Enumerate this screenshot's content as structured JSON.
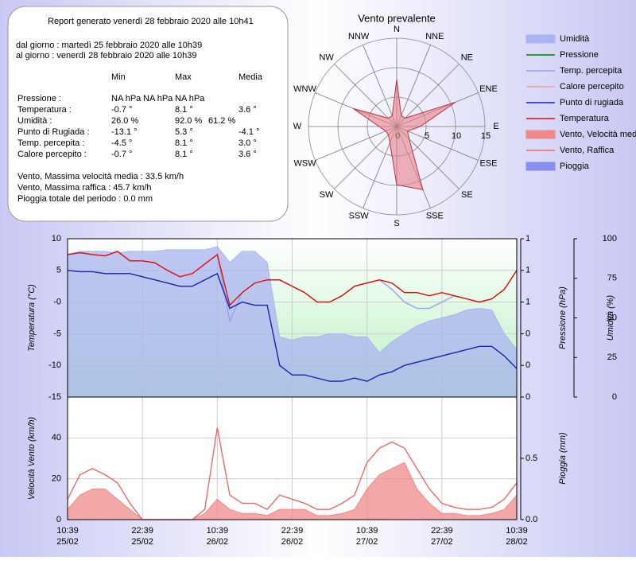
{
  "report": {
    "title": "Report generato venerdì 28 febbraio 2020 alle 10h41",
    "from": "dal giorno : martedì 25 febbraio 2020 alle 10h39",
    "to": "al giorno : venerdì 28 febbraio 2020 alle 10h39",
    "columns": [
      "Min",
      "Max",
      "Media"
    ],
    "rows": [
      [
        "Pressione :",
        "NA hPa",
        "NA hPa",
        "NA hPa"
      ],
      [
        "Temperatura :",
        "-0.7 °",
        "8.1 °",
        "3.6 °"
      ],
      [
        "Umidità :",
        "26.0 %",
        "92.0 %",
        "61.2 %"
      ],
      [
        "Punto di Rugiada :",
        "-13.1 °",
        "5.3 °",
        "-4.1 °"
      ],
      [
        "Temp. percepita :",
        "-4.5 °",
        "8.1 °",
        "3.0 °"
      ],
      [
        "Calore percepito :",
        "-0.7 °",
        "8.1 °",
        "3.6 °"
      ]
    ],
    "notes": [
      "Vento, Massima velocità media : 33.5 km/h",
      "Vento, Massima raffica : 45.7 km/h",
      "Pioggia totale del periodo : 0.0 mm"
    ]
  },
  "chart_data": [
    {
      "type": "radar",
      "title": "Vento prevalente",
      "categories": [
        "N",
        "NNE",
        "NE",
        "ENE",
        "E",
        "ESE",
        "SE",
        "SSE",
        "S",
        "SSW",
        "SW",
        "WSW",
        "W",
        "WNW",
        "NW",
        "NNW"
      ],
      "values": [
        8,
        2,
        2,
        10.8,
        4,
        2,
        3,
        11.6,
        9.9,
        3,
        2,
        2,
        3,
        8,
        2,
        2
      ],
      "color": "#e88088",
      "rlim": [
        0,
        15
      ],
      "rticks": [
        0,
        5,
        10,
        15
      ]
    },
    {
      "type": "line",
      "x": [
        "10:39 25/02",
        "12:39 25/02",
        "14:39 25/02",
        "16:39 25/02",
        "18:39 25/02",
        "20:39 25/02",
        "22:39 25/02",
        "00:39 26/02",
        "02:39 26/02",
        "04:39 26/02",
        "06:39 26/02",
        "08:39 26/02",
        "10:39 26/02",
        "12:39 26/02",
        "14:39 26/02",
        "16:39 26/02",
        "18:39 26/02",
        "20:39 26/02",
        "22:39 26/02",
        "00:39 27/02",
        "02:39 27/02",
        "04:39 27/02",
        "06:39 27/02",
        "08:39 27/02",
        "10:39 27/02",
        "12:39 27/02",
        "14:39 27/02",
        "16:39 27/02",
        "18:39 27/02",
        "20:39 27/02",
        "22:39 27/02",
        "00:39 28/02",
        "02:39 28/02",
        "04:39 28/02",
        "06:39 28/02",
        "08:39 28/02",
        "10:39 28/02"
      ],
      "xlim": [
        "10:39 25/02",
        "10:39 28/02"
      ],
      "xticks": [
        "10:39 25/02",
        "22:39 25/02",
        "10:39 26/02",
        "22:39 26/02",
        "10:39 27/02",
        "22:39 27/02",
        "10:39 28/02"
      ],
      "y_label": "Temperatura (°C)",
      "y2_label": "Pressione (hPa)",
      "y3_label": "Umidità (%)",
      "ylim": [
        -15,
        10
      ],
      "yticks": [
        10,
        5,
        {
          "value": 0,
          "label": "-0"
        },
        -5,
        -10,
        -15
      ],
      "y2lim": [
        0,
        1.25
      ],
      "y2ticks": [
        {
          "value": 1.25,
          "label": "1"
        },
        1,
        {
          "value": 0.75,
          "label": "1"
        },
        {
          "value": 0.5,
          "label": "0"
        },
        {
          "value": 0.25,
          "label": "0"
        },
        0
      ],
      "y3lim": [
        0,
        100
      ],
      "y3ticks": [
        100,
        75,
        50,
        25,
        0
      ],
      "grid": true,
      "series": [
        {
          "name": "Umidità",
          "color": "#aab4f0",
          "style": "area",
          "axis": "y3",
          "values": [
            90,
            92,
            92,
            92,
            91,
            92,
            92,
            92,
            93,
            93,
            93,
            93,
            95,
            85,
            92,
            92,
            85,
            38,
            36,
            38,
            38,
            40,
            40,
            38,
            38,
            28,
            35,
            40,
            45,
            48,
            50,
            52,
            55,
            56,
            55,
            40,
            30
          ]
        },
        {
          "name": "Pressione",
          "color": "#008000",
          "style": "line",
          "axis": "y2",
          "values": [
            null,
            null,
            null,
            null,
            null,
            null,
            null,
            null,
            null,
            null,
            null,
            null,
            null,
            null,
            null,
            null,
            null,
            null,
            null,
            null,
            null,
            null,
            null,
            null,
            null,
            null,
            null,
            null,
            null,
            null,
            null,
            null,
            null,
            null,
            null,
            null,
            null
          ]
        },
        {
          "name": "Temp. percepita",
          "color": "#9aa0ee",
          "style": "line",
          "values": [
            7.5,
            7.8,
            7.5,
            7.3,
            8,
            6.5,
            6.5,
            6.2,
            5,
            4,
            4.5,
            6,
            7.5,
            -3,
            1.5,
            3,
            3.5,
            3.5,
            2.5,
            1.5,
            0,
            0,
            1,
            2.5,
            3,
            3.5,
            2,
            0,
            -1,
            -1,
            0,
            1,
            0.5,
            0,
            0.5,
            2,
            5
          ]
        },
        {
          "name": "Calore percepito",
          "color": "#f0a0a0",
          "style": "line",
          "values": [
            7.5,
            7.8,
            7.5,
            7.3,
            8,
            6.5,
            6.5,
            6.2,
            5,
            4,
            4.5,
            6,
            7.5,
            -0.5,
            1.5,
            3,
            3.5,
            3.5,
            2.5,
            1.5,
            0,
            0,
            1,
            2.5,
            3,
            3.5,
            3,
            1.5,
            1.5,
            1,
            1.5,
            1,
            0.5,
            0,
            0.5,
            2,
            5
          ]
        },
        {
          "name": "Punto di rugiada",
          "color": "#1a22b0",
          "style": "line",
          "values": [
            5,
            4.8,
            4.8,
            4.5,
            4.5,
            4.5,
            4,
            3.5,
            3,
            2.5,
            2.5,
            3.5,
            4.5,
            -1,
            0,
            -0.5,
            -0.5,
            -10,
            -11.5,
            -11.5,
            -12,
            -12.5,
            -12.5,
            -12,
            -12.5,
            -11.5,
            -11,
            -10,
            -9.5,
            -9,
            -8.5,
            -8,
            -7.5,
            -7,
            -7,
            -8.5,
            -10.5
          ]
        },
        {
          "name": "Temperatura",
          "color": "#d81010",
          "style": "line",
          "values": [
            7.5,
            7.8,
            7.5,
            7.3,
            8,
            6.5,
            6.5,
            6.2,
            5,
            4,
            4.5,
            6,
            7.5,
            -0.5,
            1.5,
            3,
            3.5,
            3.5,
            2.5,
            1.5,
            0,
            0,
            1,
            2.5,
            3,
            3.5,
            3,
            1.5,
            1.5,
            1,
            1.5,
            1,
            0.5,
            0,
            0.5,
            2,
            5
          ]
        }
      ]
    },
    {
      "type": "line",
      "x": [
        "10:39 25/02",
        "12:39 25/02",
        "14:39 25/02",
        "16:39 25/02",
        "18:39 25/02",
        "20:39 25/02",
        "22:39 25/02",
        "00:39 26/02",
        "02:39 26/02",
        "04:39 26/02",
        "06:39 26/02",
        "08:39 26/02",
        "10:39 26/02",
        "12:39 26/02",
        "14:39 26/02",
        "16:39 26/02",
        "18:39 26/02",
        "20:39 26/02",
        "22:39 26/02",
        "00:39 27/02",
        "02:39 27/02",
        "04:39 27/02",
        "06:39 27/02",
        "08:39 27/02",
        "10:39 27/02",
        "12:39 27/02",
        "14:39 27/02",
        "16:39 27/02",
        "18:39 27/02",
        "20:39 27/02",
        "22:39 27/02",
        "00:39 28/02",
        "02:39 28/02",
        "04:39 28/02",
        "06:39 28/02",
        "08:39 28/02",
        "10:39 28/02"
      ],
      "xlim": [
        "10:39 25/02",
        "10:39 28/02"
      ],
      "xticks": [
        {
          "value": "10:39 25/02",
          "label": "10:39 25/02"
        },
        {
          "value": "22:39 25/02",
          "label": "22:39 25/02"
        },
        {
          "value": "10:39 26/02",
          "label": "10:39 26/02"
        },
        {
          "value": "22:39 26/02",
          "label": "22:39 26/02"
        },
        {
          "value": "10:39 27/02",
          "label": "10:39 27/02"
        },
        {
          "value": "22:39 27/02",
          "label": "22:39 27/02"
        },
        {
          "value": "10:39 28/02",
          "label": "10:39 28/02"
        }
      ],
      "y_label": "Velocità Vento (km/h)",
      "y2_label": "Pioggia (mm)",
      "ylim": [
        0,
        60
      ],
      "yticks": [
        0,
        20,
        40
      ],
      "y2lim": [
        0,
        1
      ],
      "y2ticks": [
        {
          "value": 0,
          "label": "0.0"
        },
        0.5
      ],
      "grid": true,
      "series": [
        {
          "name": "Vento, Velocità media",
          "color": "#f08a8a",
          "style": "area",
          "values": [
            5,
            12,
            15,
            15,
            10,
            5,
            0,
            0,
            0,
            0,
            0,
            3,
            10,
            5,
            3,
            3,
            2,
            5,
            5,
            5,
            2,
            2,
            3,
            5,
            15,
            22,
            25,
            28,
            15,
            8,
            3,
            3,
            2,
            2,
            3,
            5,
            12
          ]
        },
        {
          "name": "Vento, Raffica",
          "color": "#e86a6a",
          "style": "line",
          "values": [
            10,
            22,
            25,
            22,
            18,
            8,
            0,
            0,
            0,
            0,
            0,
            5,
            45,
            12,
            8,
            8,
            5,
            12,
            10,
            8,
            5,
            5,
            8,
            12,
            28,
            35,
            38,
            35,
            25,
            15,
            8,
            6,
            5,
            5,
            6,
            10,
            18
          ]
        },
        {
          "name": "Pioggia",
          "color": "#8890ee",
          "style": "area",
          "axis": "y2",
          "values": [
            0,
            0,
            0,
            0,
            0,
            0,
            0,
            0,
            0,
            0,
            0,
            0,
            0,
            0,
            0,
            0,
            0,
            0,
            0,
            0,
            0,
            0,
            0,
            0,
            0,
            0,
            0,
            0,
            0,
            0,
            0,
            0,
            0,
            0,
            0,
            0,
            0
          ]
        }
      ]
    }
  ]
}
